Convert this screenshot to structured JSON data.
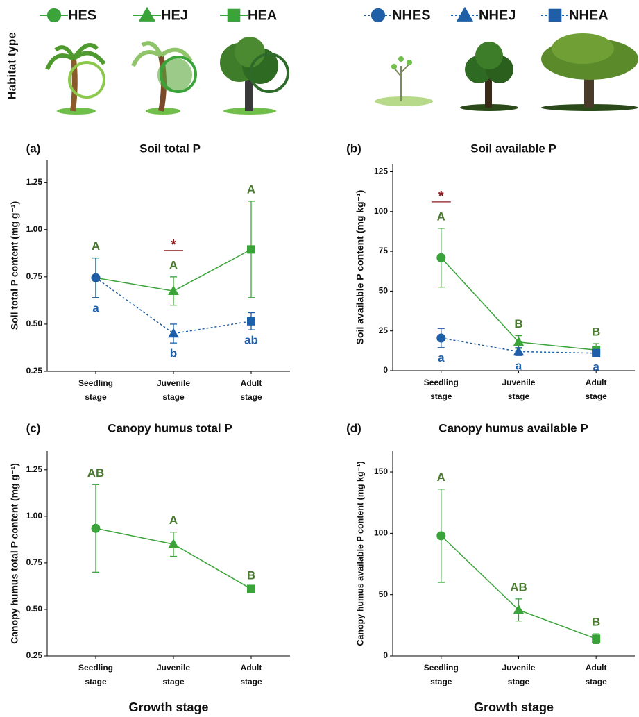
{
  "habitat_label": "Habitat type",
  "legend": [
    {
      "name": "HES",
      "marker": "circle",
      "color": "#3aa33a",
      "linestyle": "solid"
    },
    {
      "name": "HEJ",
      "marker": "triangle",
      "color": "#3aa33a",
      "linestyle": "solid"
    },
    {
      "name": "HEA",
      "marker": "square",
      "color": "#3aa33a",
      "linestyle": "solid"
    },
    {
      "name": "NHES",
      "marker": "circle",
      "color": "#1f5fa8",
      "linestyle": "dotted"
    },
    {
      "name": "NHEJ",
      "marker": "triangle",
      "color": "#1f5fa8",
      "linestyle": "dotted"
    },
    {
      "name": "NHEA",
      "marker": "square",
      "color": "#1f5fa8",
      "linestyle": "dotted"
    }
  ],
  "chart_data": [
    {
      "type": "line",
      "panel": "(a)",
      "title": "Soil total P",
      "ylabel": "Soil total P content (mg g⁻¹)",
      "categories": [
        "Seedling stage",
        "Juvenile stage",
        "Adult stage"
      ],
      "markers": [
        "circle",
        "triangle",
        "square"
      ],
      "ylim": [
        0.25,
        1.37
      ],
      "yticks": [
        0.25,
        {
          "value": 0.5,
          "label": "0.50"
        },
        0.75,
        {
          "value": 1,
          "label": "1.00"
        },
        1.25
      ],
      "significance": [
        null,
        "*",
        null
      ],
      "significance_color": "#8b1a1a",
      "series": [
        {
          "color": "#3aa33a",
          "linestyle": "solid",
          "letter_color": "#4a7a30",
          "values": [
            0.745,
            0.675,
            0.895
          ],
          "errors": [
            0.105,
            0.075,
            0.255
          ],
          "letters": [
            "A",
            "A",
            "A"
          ]
        },
        {
          "color": "#1f5fa8",
          "linestyle": "dotted",
          "letter_color": "#1f5fa8",
          "values": [
            0.745,
            0.45,
            0.515
          ],
          "errors": [
            0.105,
            0.05,
            0.045
          ],
          "letters": [
            "a",
            "b",
            "ab"
          ]
        }
      ]
    },
    {
      "type": "line",
      "panel": "(b)",
      "title": "Soil available P",
      "ylabel": "Soil available P content (mg kg⁻¹)",
      "categories": [
        "Seedling stage",
        "Juvenile stage",
        "Adult stage"
      ],
      "markers": [
        "circle",
        "triangle",
        "square"
      ],
      "ylim": [
        0,
        130
      ],
      "yticks": [
        0,
        25,
        50,
        75,
        100,
        125
      ],
      "significance": [
        "*",
        null,
        null
      ],
      "significance_color": "#8b1a1a",
      "series": [
        {
          "color": "#3aa33a",
          "linestyle": "solid",
          "letter_color": "#4a7a30",
          "values": [
            71,
            18,
            13
          ],
          "errors": [
            18.5,
            4,
            4
          ],
          "letters": [
            "A",
            "B",
            "B"
          ]
        },
        {
          "color": "#1f5fa8",
          "linestyle": "dotted",
          "letter_color": "#1f5fa8",
          "values": [
            20.5,
            12,
            11
          ],
          "errors": [
            6,
            2.5,
            2
          ],
          "letters": [
            "a",
            "a",
            "a"
          ]
        }
      ]
    },
    {
      "type": "line",
      "panel": "(c)",
      "title": "Canopy humus total P",
      "ylabel": "Canopy humus total P content (mg g⁻¹)",
      "xlabel": "Growth stage",
      "categories": [
        "Seedling stage",
        "Juvenile stage",
        "Adult stage"
      ],
      "markers": [
        "circle",
        "triangle",
        "square"
      ],
      "ylim": [
        0.25,
        1.35
      ],
      "yticks": [
        0.25,
        {
          "value": 0.5,
          "label": "0.50"
        },
        0.75,
        {
          "value": 1,
          "label": "1.00"
        },
        1.25
      ],
      "series": [
        {
          "color": "#3aa33a",
          "linestyle": "solid",
          "letter_color": "#4a7a30",
          "values": [
            0.935,
            0.85,
            0.61
          ],
          "errors": [
            0.235,
            0.065,
            0.01
          ],
          "letters": [
            "AB",
            "A",
            "B"
          ]
        }
      ]
    },
    {
      "type": "line",
      "panel": "(d)",
      "title": "Canopy humus available P",
      "ylabel": "Canopy humus available P content (mg kg⁻¹)",
      "xlabel": "Growth stage",
      "categories": [
        "Seedling stage",
        "Juvenile stage",
        "Adult stage"
      ],
      "markers": [
        "circle",
        "triangle",
        "square"
      ],
      "ylim": [
        0,
        167
      ],
      "yticks": [
        0,
        50,
        100,
        150
      ],
      "series": [
        {
          "color": "#3aa33a",
          "linestyle": "solid",
          "letter_color": "#4a7a30",
          "values": [
            98,
            37.5,
            14
          ],
          "errors": [
            38,
            9,
            4
          ],
          "letters": [
            "A",
            "AB",
            "B"
          ]
        }
      ]
    }
  ]
}
